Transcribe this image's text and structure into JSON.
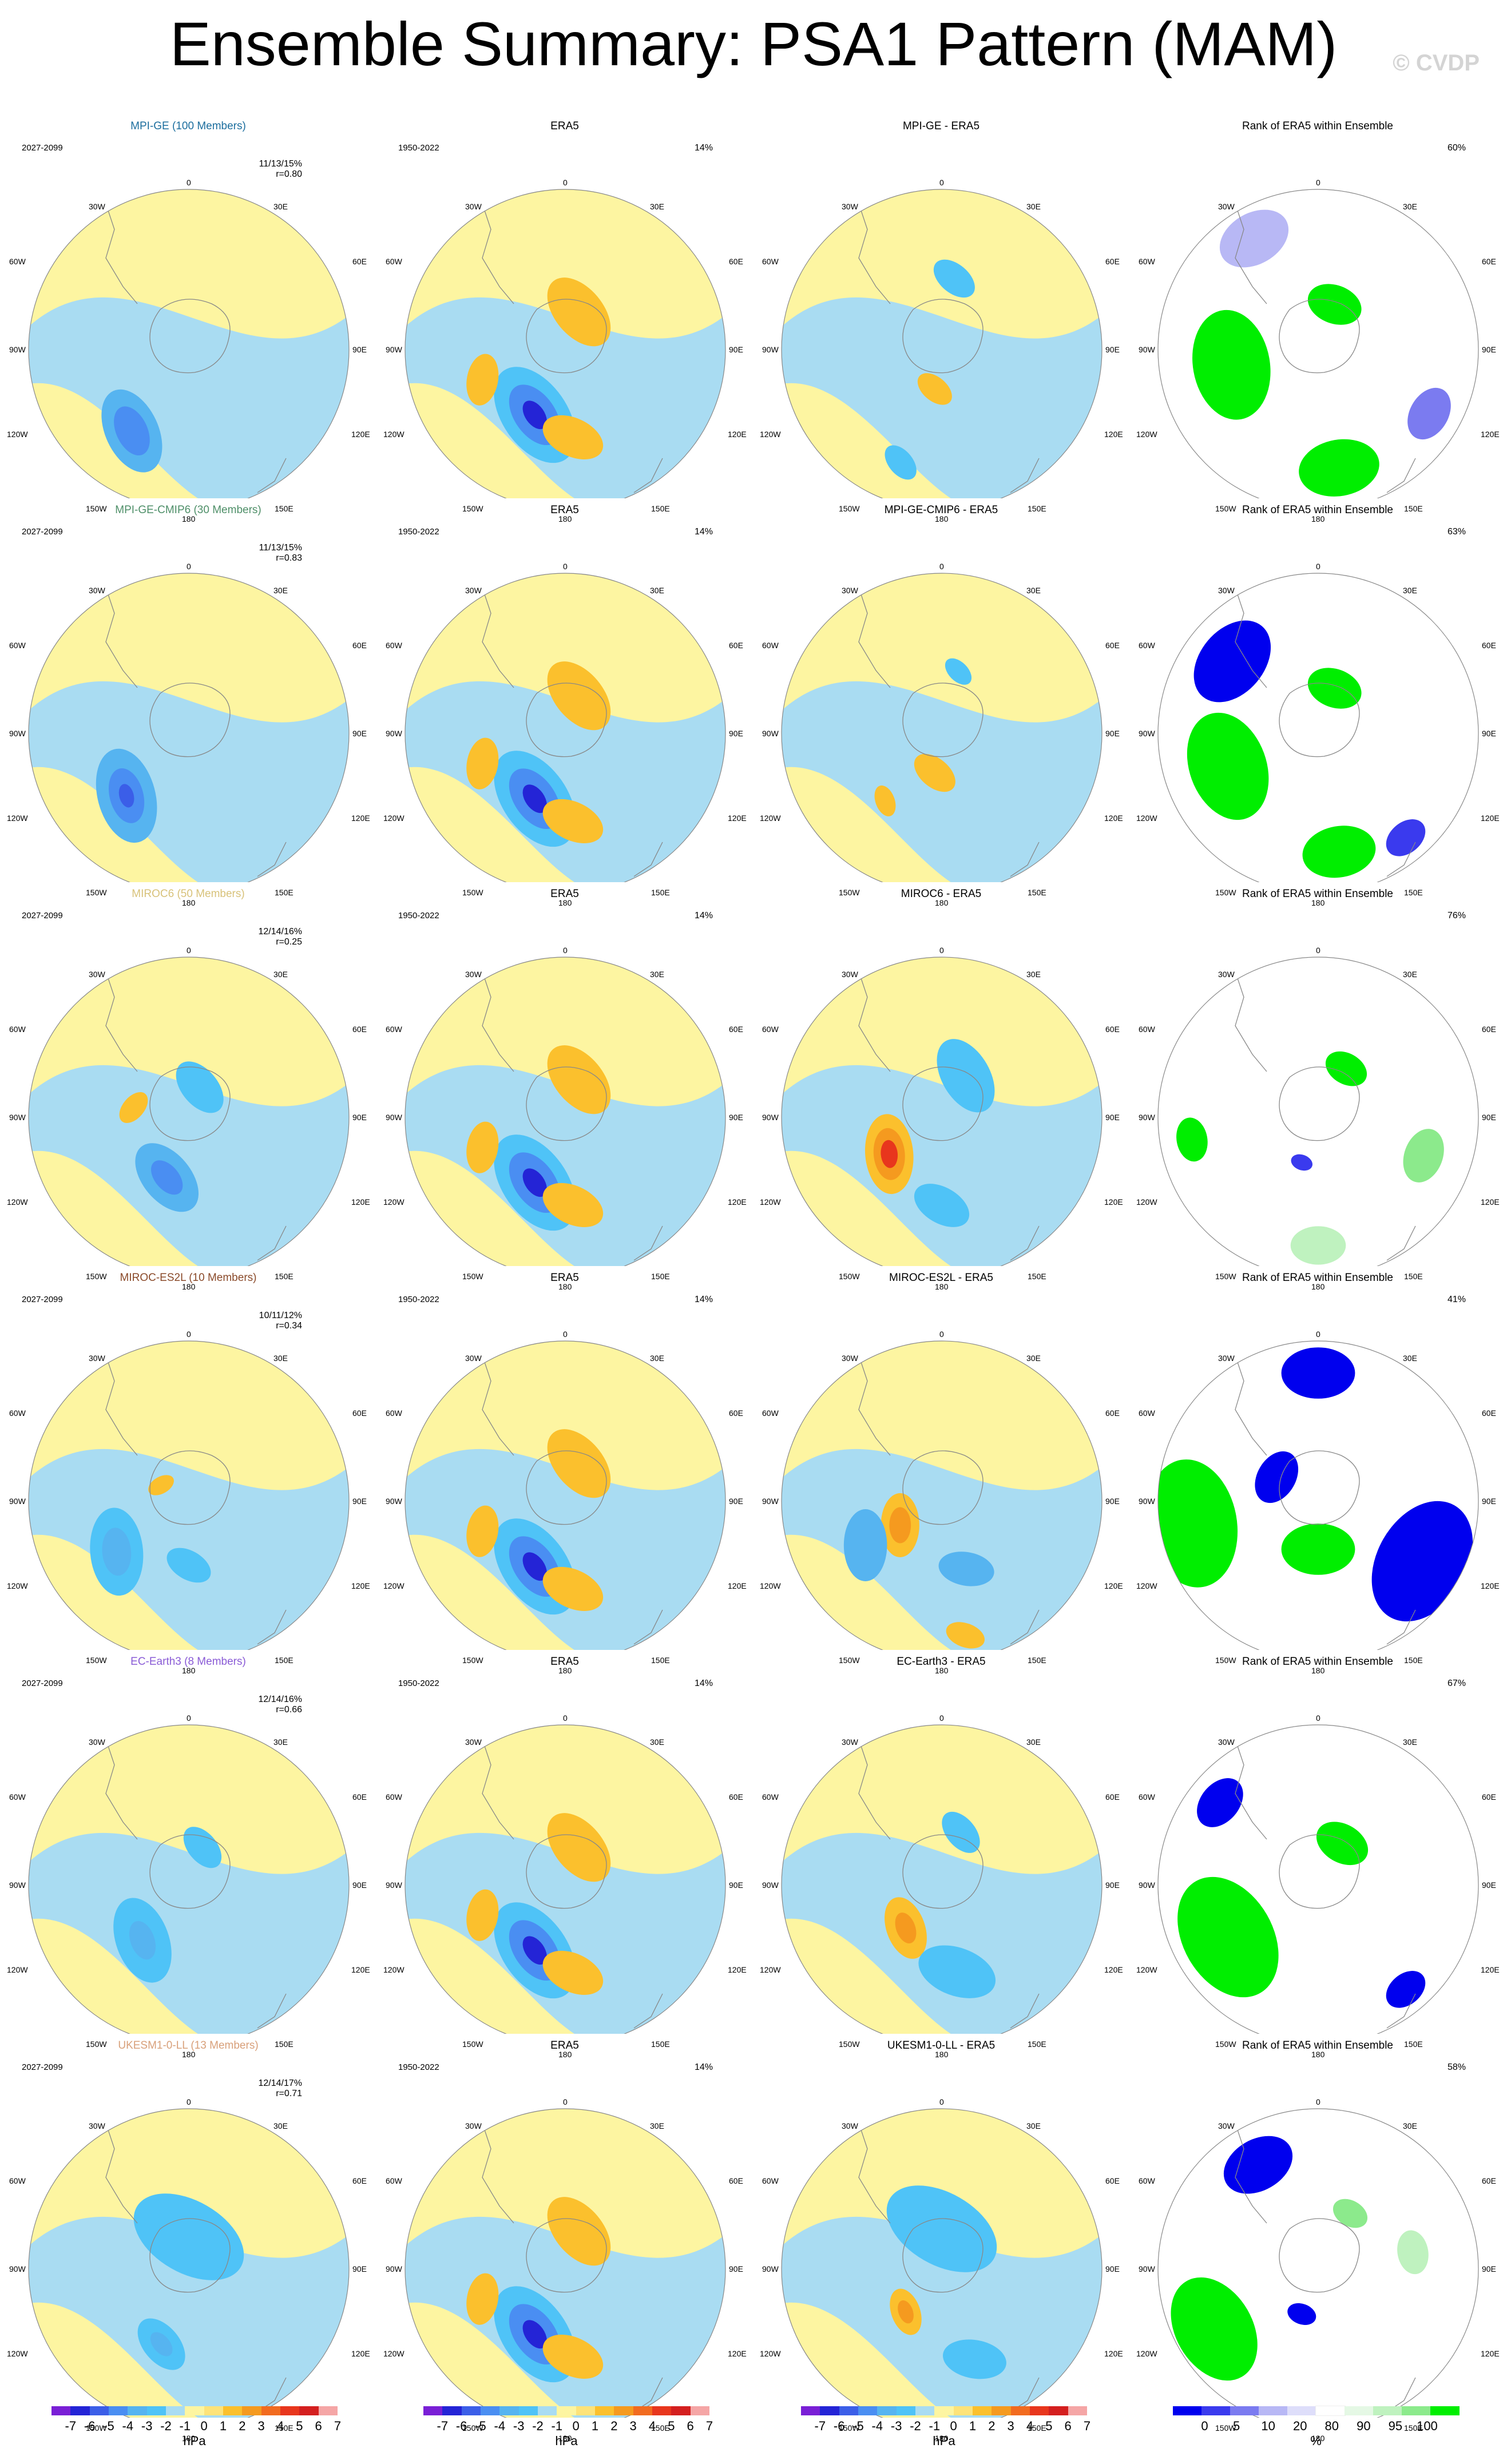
{
  "page": {
    "title": "Ensemble Summary: PSA1 Pattern (MAM)",
    "watermark": "© CVDP"
  },
  "labels": {
    "lon_top": "0",
    "lon_bottom": "180",
    "lon_30w": "30W",
    "lon_30e": "30E",
    "lon_60w": "60W",
    "lon_60e": "60E",
    "lon_90w": "90W",
    "lon_90e": "90E",
    "lon_120w": "120W",
    "lon_120e": "120E",
    "lon_150w": "150W",
    "lon_150e": "150E"
  },
  "colors": {
    "contour_scale": [
      "#7a1fd6",
      "#2424d6",
      "#3b5ee8",
      "#4a8ef2",
      "#56b4f0",
      "#4fc3f7",
      "#a9dcf2",
      "#fdf5a1",
      "#fde37a",
      "#fbc02d",
      "#f59a1f",
      "#f26b1f",
      "#e8361d",
      "#d41f1f",
      "#f5a6a6"
    ],
    "rank_scale": [
      "#0000ee",
      "#3a3aee",
      "#7b7bf0",
      "#b8b8f5",
      "#dedefa",
      "#ffffff",
      "#e5f8e5",
      "#bff2bf",
      "#8cea8c",
      "#00ee00"
    ],
    "land": "#888888"
  },
  "chart_data": [
    {
      "type": "contour-map",
      "title": "MPI-GE (100 Members)",
      "title_color": "#1c6e9e",
      "period": "2027-2099",
      "stats": "11/13/15%",
      "r": "r=0.80",
      "blobs": [
        {
          "lon": 215,
          "lat_off": 0.62,
          "r": 0.22,
          "level": -3
        },
        {
          "lon": 215,
          "lat_off": 0.62,
          "r": 0.13,
          "level": -4
        }
      ]
    },
    {
      "type": "contour-map",
      "title": "ERA5",
      "period": "1950-2022",
      "pct": "14%",
      "blobs": [
        {
          "lon": 205,
          "lat_off": 0.45,
          "r": 0.27,
          "level": -2
        },
        {
          "lon": 205,
          "lat_off": 0.45,
          "r": 0.17,
          "level": -4
        },
        {
          "lon": 205,
          "lat_off": 0.45,
          "r": 0.08,
          "level": -6
        },
        {
          "lon": 250,
          "lat_off": 0.55,
          "r": 0.13,
          "level": 2
        },
        {
          "lon": 175,
          "lat_off": 0.55,
          "r": 0.16,
          "level": 2
        },
        {
          "lon": 20,
          "lat_off": 0.25,
          "r": 0.2,
          "level": 2
        }
      ]
    },
    {
      "type": "contour-map",
      "title": "MPI-GE - ERA5",
      "blobs": [
        {
          "lon": 10,
          "lat_off": 0.45,
          "r": 0.12,
          "level": -2
        },
        {
          "lon": 190,
          "lat_off": 0.25,
          "r": 0.1,
          "level": 2
        },
        {
          "lon": 200,
          "lat_off": 0.75,
          "r": 0.1,
          "level": -2
        }
      ]
    },
    {
      "type": "rank-map",
      "title": "Rank of ERA5 within Ensemble",
      "pct": "60%",
      "blobs": [
        {
          "lon": 260,
          "lat_off": 0.55,
          "r": 0.3,
          "level": 9
        },
        {
          "lon": 170,
          "lat_off": 0.75,
          "r": 0.22,
          "level": 9
        },
        {
          "lon": 20,
          "lat_off": 0.3,
          "r": 0.15,
          "level": 9
        },
        {
          "lon": 330,
          "lat_off": 0.8,
          "r": 0.2,
          "level": 3
        },
        {
          "lon": 120,
          "lat_off": 0.8,
          "r": 0.15,
          "level": 2
        }
      ]
    },
    {
      "type": "contour-map",
      "title": "MPI-GE-CMIP6 (30 Members)",
      "title_color": "#4e8f68",
      "period": "2027-2099",
      "stats": "11/13/15%",
      "r": "r=0.83",
      "blobs": [
        {
          "lon": 225,
          "lat_off": 0.55,
          "r": 0.24,
          "level": -3
        },
        {
          "lon": 225,
          "lat_off": 0.55,
          "r": 0.14,
          "level": -4
        },
        {
          "lon": 225,
          "lat_off": 0.55,
          "r": 0.06,
          "level": -5
        }
      ]
    },
    {
      "type": "contour-map",
      "title": "ERA5",
      "period": "1950-2022",
      "pct": "14%",
      "blobs": [
        {
          "lon": 205,
          "lat_off": 0.45,
          "r": 0.27,
          "level": -2
        },
        {
          "lon": 205,
          "lat_off": 0.45,
          "r": 0.17,
          "level": -4
        },
        {
          "lon": 205,
          "lat_off": 0.45,
          "r": 0.08,
          "level": -6
        },
        {
          "lon": 250,
          "lat_off": 0.55,
          "r": 0.13,
          "level": 2
        },
        {
          "lon": 175,
          "lat_off": 0.55,
          "r": 0.16,
          "level": 2
        },
        {
          "lon": 20,
          "lat_off": 0.25,
          "r": 0.2,
          "level": 2
        }
      ]
    },
    {
      "type": "contour-map",
      "title": "MPI-GE-CMIP6 - ERA5",
      "blobs": [
        {
          "lon": 15,
          "lat_off": 0.4,
          "r": 0.08,
          "level": -2
        },
        {
          "lon": 190,
          "lat_off": 0.25,
          "r": 0.12,
          "level": 2
        },
        {
          "lon": 220,
          "lat_off": 0.55,
          "r": 0.08,
          "level": 2
        }
      ]
    },
    {
      "type": "rank-map",
      "title": "Rank of ERA5 within Ensemble",
      "pct": "63%",
      "blobs": [
        {
          "lon": 310,
          "lat_off": 0.7,
          "r": 0.25,
          "level": 0
        },
        {
          "lon": 250,
          "lat_off": 0.6,
          "r": 0.3,
          "level": 9
        },
        {
          "lon": 170,
          "lat_off": 0.75,
          "r": 0.2,
          "level": 9
        },
        {
          "lon": 20,
          "lat_off": 0.3,
          "r": 0.15,
          "level": 9
        },
        {
          "lon": 140,
          "lat_off": 0.85,
          "r": 0.12,
          "level": 1
        }
      ]
    },
    {
      "type": "contour-map",
      "title": "MIROC6 (50 Members)",
      "title_color": "#d8c27a",
      "period": "2027-2099",
      "stats": "12/14/16%",
      "r": "r=0.25",
      "blobs": [
        {
          "lon": 200,
          "lat_off": 0.4,
          "r": 0.2,
          "level": -3
        },
        {
          "lon": 200,
          "lat_off": 0.4,
          "r": 0.1,
          "level": -4
        },
        {
          "lon": 280,
          "lat_off": 0.35,
          "r": 0.09,
          "level": 2
        },
        {
          "lon": 20,
          "lat_off": 0.2,
          "r": 0.15,
          "level": -2
        }
      ]
    },
    {
      "type": "contour-map",
      "title": "ERA5",
      "period": "1950-2022",
      "pct": "14%",
      "blobs": [
        {
          "lon": 205,
          "lat_off": 0.45,
          "r": 0.27,
          "level": -2
        },
        {
          "lon": 205,
          "lat_off": 0.45,
          "r": 0.17,
          "level": -4
        },
        {
          "lon": 205,
          "lat_off": 0.45,
          "r": 0.08,
          "level": -6
        },
        {
          "lon": 250,
          "lat_off": 0.55,
          "r": 0.13,
          "level": 2
        },
        {
          "lon": 175,
          "lat_off": 0.55,
          "r": 0.16,
          "level": 2
        },
        {
          "lon": 20,
          "lat_off": 0.25,
          "r": 0.2,
          "level": 2
        }
      ]
    },
    {
      "type": "contour-map",
      "title": "MIROC6 - ERA5",
      "blobs": [
        {
          "lon": 235,
          "lat_off": 0.4,
          "r": 0.2,
          "level": 2
        },
        {
          "lon": 235,
          "lat_off": 0.4,
          "r": 0.13,
          "level": 3
        },
        {
          "lon": 235,
          "lat_off": 0.4,
          "r": 0.07,
          "level": 5
        },
        {
          "lon": 30,
          "lat_off": 0.3,
          "r": 0.2,
          "level": -2
        },
        {
          "lon": 180,
          "lat_off": 0.55,
          "r": 0.15,
          "level": -2
        }
      ]
    },
    {
      "type": "rank-map",
      "title": "Rank of ERA5 within Ensemble",
      "pct": "76%",
      "blobs": [
        {
          "lon": 260,
          "lat_off": 0.8,
          "r": 0.12,
          "level": 9
        },
        {
          "lon": 30,
          "lat_off": 0.35,
          "r": 0.12,
          "level": 9
        },
        {
          "lon": 110,
          "lat_off": 0.7,
          "r": 0.15,
          "level": 8
        },
        {
          "lon": 200,
          "lat_off": 0.3,
          "r": 0.06,
          "level": 1
        },
        {
          "lon": 180,
          "lat_off": 0.8,
          "r": 0.15,
          "level": 7
        }
      ]
    },
    {
      "type": "contour-map",
      "title": "MIROC-ES2L (10 Members)",
      "title_color": "#8a4a2a",
      "period": "2027-2099",
      "stats": "10/11/12%",
      "r": "r=0.34",
      "blobs": [
        {
          "lon": 235,
          "lat_off": 0.55,
          "r": 0.22,
          "level": -2
        },
        {
          "lon": 235,
          "lat_off": 0.55,
          "r": 0.12,
          "level": -3
        },
        {
          "lon": 180,
          "lat_off": 0.4,
          "r": 0.12,
          "level": -2
        },
        {
          "lon": 300,
          "lat_off": 0.2,
          "r": 0.07,
          "level": 2
        }
      ]
    },
    {
      "type": "contour-map",
      "title": "ERA5",
      "period": "1950-2022",
      "pct": "14%",
      "blobs": [
        {
          "lon": 205,
          "lat_off": 0.45,
          "r": 0.27,
          "level": -2
        },
        {
          "lon": 205,
          "lat_off": 0.45,
          "r": 0.17,
          "level": -4
        },
        {
          "lon": 205,
          "lat_off": 0.45,
          "r": 0.08,
          "level": -6
        },
        {
          "lon": 250,
          "lat_off": 0.55,
          "r": 0.13,
          "level": 2
        },
        {
          "lon": 175,
          "lat_off": 0.55,
          "r": 0.16,
          "level": 2
        },
        {
          "lon": 20,
          "lat_off": 0.25,
          "r": 0.2,
          "level": 2
        }
      ]
    },
    {
      "type": "contour-map",
      "title": "MIROC-ES2L - ERA5",
      "blobs": [
        {
          "lon": 240,
          "lat_off": 0.3,
          "r": 0.16,
          "level": 2
        },
        {
          "lon": 240,
          "lat_off": 0.3,
          "r": 0.09,
          "level": 3
        },
        {
          "lon": 240,
          "lat_off": 0.55,
          "r": 0.18,
          "level": -3
        },
        {
          "lon": 160,
          "lat_off": 0.45,
          "r": 0.14,
          "level": -3
        },
        {
          "lon": 170,
          "lat_off": 0.85,
          "r": 0.1,
          "level": 2
        }
      ]
    },
    {
      "type": "rank-map",
      "title": "Rank of ERA5 within Ensemble",
      "pct": "41%",
      "blobs": [
        {
          "lon": 260,
          "lat_off": 0.8,
          "r": 0.35,
          "level": 9
        },
        {
          "lon": 120,
          "lat_off": 0.75,
          "r": 0.35,
          "level": 0
        },
        {
          "lon": 180,
          "lat_off": 0.3,
          "r": 0.2,
          "level": 9
        },
        {
          "lon": 300,
          "lat_off": 0.3,
          "r": 0.15,
          "level": 0
        },
        {
          "lon": 0,
          "lat_off": 0.8,
          "r": 0.2,
          "level": 0
        }
      ]
    },
    {
      "type": "contour-map",
      "title": "EC-Earth3 (8 Members)",
      "title_color": "#8a5bd6",
      "period": "2027-2099",
      "stats": "12/14/16%",
      "r": "r=0.66",
      "blobs": [
        {
          "lon": 220,
          "lat_off": 0.45,
          "r": 0.22,
          "level": -2
        },
        {
          "lon": 220,
          "lat_off": 0.45,
          "r": 0.1,
          "level": -3
        },
        {
          "lon": 20,
          "lat_off": 0.25,
          "r": 0.12,
          "level": -2
        }
      ]
    },
    {
      "type": "contour-map",
      "title": "ERA5",
      "period": "1950-2022",
      "pct": "14%",
      "blobs": [
        {
          "lon": 205,
          "lat_off": 0.45,
          "r": 0.27,
          "level": -2
        },
        {
          "lon": 205,
          "lat_off": 0.45,
          "r": 0.17,
          "level": -4
        },
        {
          "lon": 205,
          "lat_off": 0.45,
          "r": 0.08,
          "level": -6
        },
        {
          "lon": 250,
          "lat_off": 0.55,
          "r": 0.13,
          "level": 2
        },
        {
          "lon": 175,
          "lat_off": 0.55,
          "r": 0.16,
          "level": 2
        },
        {
          "lon": 20,
          "lat_off": 0.25,
          "r": 0.2,
          "level": 2
        }
      ]
    },
    {
      "type": "contour-map",
      "title": "EC-Earth3 - ERA5",
      "blobs": [
        {
          "lon": 220,
          "lat_off": 0.35,
          "r": 0.16,
          "level": 2
        },
        {
          "lon": 220,
          "lat_off": 0.35,
          "r": 0.08,
          "level": 3
        },
        {
          "lon": 20,
          "lat_off": 0.35,
          "r": 0.12,
          "level": -2
        },
        {
          "lon": 170,
          "lat_off": 0.55,
          "r": 0.2,
          "level": -2
        }
      ]
    },
    {
      "type": "rank-map",
      "title": "Rank of ERA5 within Ensemble",
      "pct": "67%",
      "blobs": [
        {
          "lon": 240,
          "lat_off": 0.65,
          "r": 0.35,
          "level": 9
        },
        {
          "lon": 30,
          "lat_off": 0.3,
          "r": 0.15,
          "level": 9
        },
        {
          "lon": 310,
          "lat_off": 0.8,
          "r": 0.15,
          "level": 0
        },
        {
          "lon": 140,
          "lat_off": 0.85,
          "r": 0.12,
          "level": 0
        }
      ]
    },
    {
      "type": "contour-map",
      "title": "UKESM1-0-LL (13 Members)",
      "title_color": "#d8a07a",
      "period": "2027-2099",
      "stats": "12/14/17%",
      "r": "r=0.71",
      "blobs": [
        {
          "lon": 200,
          "lat_off": 0.5,
          "r": 0.15,
          "level": -2
        },
        {
          "lon": 200,
          "lat_off": 0.5,
          "r": 0.07,
          "level": -3
        },
        {
          "lon": 0,
          "lat_off": 0.2,
          "r": 0.3,
          "level": -2
        }
      ]
    },
    {
      "type": "contour-map",
      "title": "ERA5",
      "period": "1950-2022",
      "pct": "14%",
      "blobs": [
        {
          "lon": 205,
          "lat_off": 0.45,
          "r": 0.27,
          "level": -2
        },
        {
          "lon": 205,
          "lat_off": 0.45,
          "r": 0.17,
          "level": -4
        },
        {
          "lon": 205,
          "lat_off": 0.45,
          "r": 0.08,
          "level": -6
        },
        {
          "lon": 250,
          "lat_off": 0.55,
          "r": 0.13,
          "level": 2
        },
        {
          "lon": 175,
          "lat_off": 0.55,
          "r": 0.16,
          "level": 2
        },
        {
          "lon": 20,
          "lat_off": 0.25,
          "r": 0.2,
          "level": 2
        }
      ]
    },
    {
      "type": "contour-map",
      "title": "UKESM1-0-LL - ERA5",
      "blobs": [
        {
          "lon": 0,
          "lat_off": 0.25,
          "r": 0.3,
          "level": -2
        },
        {
          "lon": 220,
          "lat_off": 0.35,
          "r": 0.12,
          "level": 2
        },
        {
          "lon": 220,
          "lat_off": 0.35,
          "r": 0.06,
          "level": 3
        },
        {
          "lon": 160,
          "lat_off": 0.6,
          "r": 0.16,
          "level": -2
        }
      ]
    },
    {
      "type": "rank-map",
      "title": "Rank of ERA5 within Ensemble",
      "pct": "58%",
      "blobs": [
        {
          "lon": 240,
          "lat_off": 0.75,
          "r": 0.3,
          "level": 9
        },
        {
          "lon": 330,
          "lat_off": 0.75,
          "r": 0.2,
          "level": 0
        },
        {
          "lon": 200,
          "lat_off": 0.3,
          "r": 0.08,
          "level": 0
        },
        {
          "lon": 80,
          "lat_off": 0.6,
          "r": 0.12,
          "level": 7
        },
        {
          "lon": 30,
          "lat_off": 0.4,
          "r": 0.1,
          "level": 8
        }
      ]
    }
  ],
  "colorbars": [
    {
      "type": "contour",
      "ticks": [
        "-7",
        "-6",
        "-5",
        "-4",
        "-3",
        "-2",
        "-1",
        "0",
        "1",
        "2",
        "3",
        "4",
        "5",
        "6",
        "7"
      ],
      "unit": "hPa"
    },
    {
      "type": "contour",
      "ticks": [
        "-7",
        "-6",
        "-5",
        "-4",
        "-3",
        "-2",
        "-1",
        "0",
        "1",
        "2",
        "3",
        "4",
        "5",
        "6",
        "7"
      ],
      "unit": "hPa"
    },
    {
      "type": "contour",
      "ticks": [
        "-7",
        "-6",
        "-5",
        "-4",
        "-3",
        "-2",
        "-1",
        "0",
        "1",
        "2",
        "3",
        "4",
        "5",
        "6",
        "7"
      ],
      "unit": "hPa"
    },
    {
      "type": "rank",
      "ticks": [
        "0",
        "5",
        "10",
        "20",
        "80",
        "90",
        "95",
        "100"
      ],
      "unit": "%"
    }
  ]
}
